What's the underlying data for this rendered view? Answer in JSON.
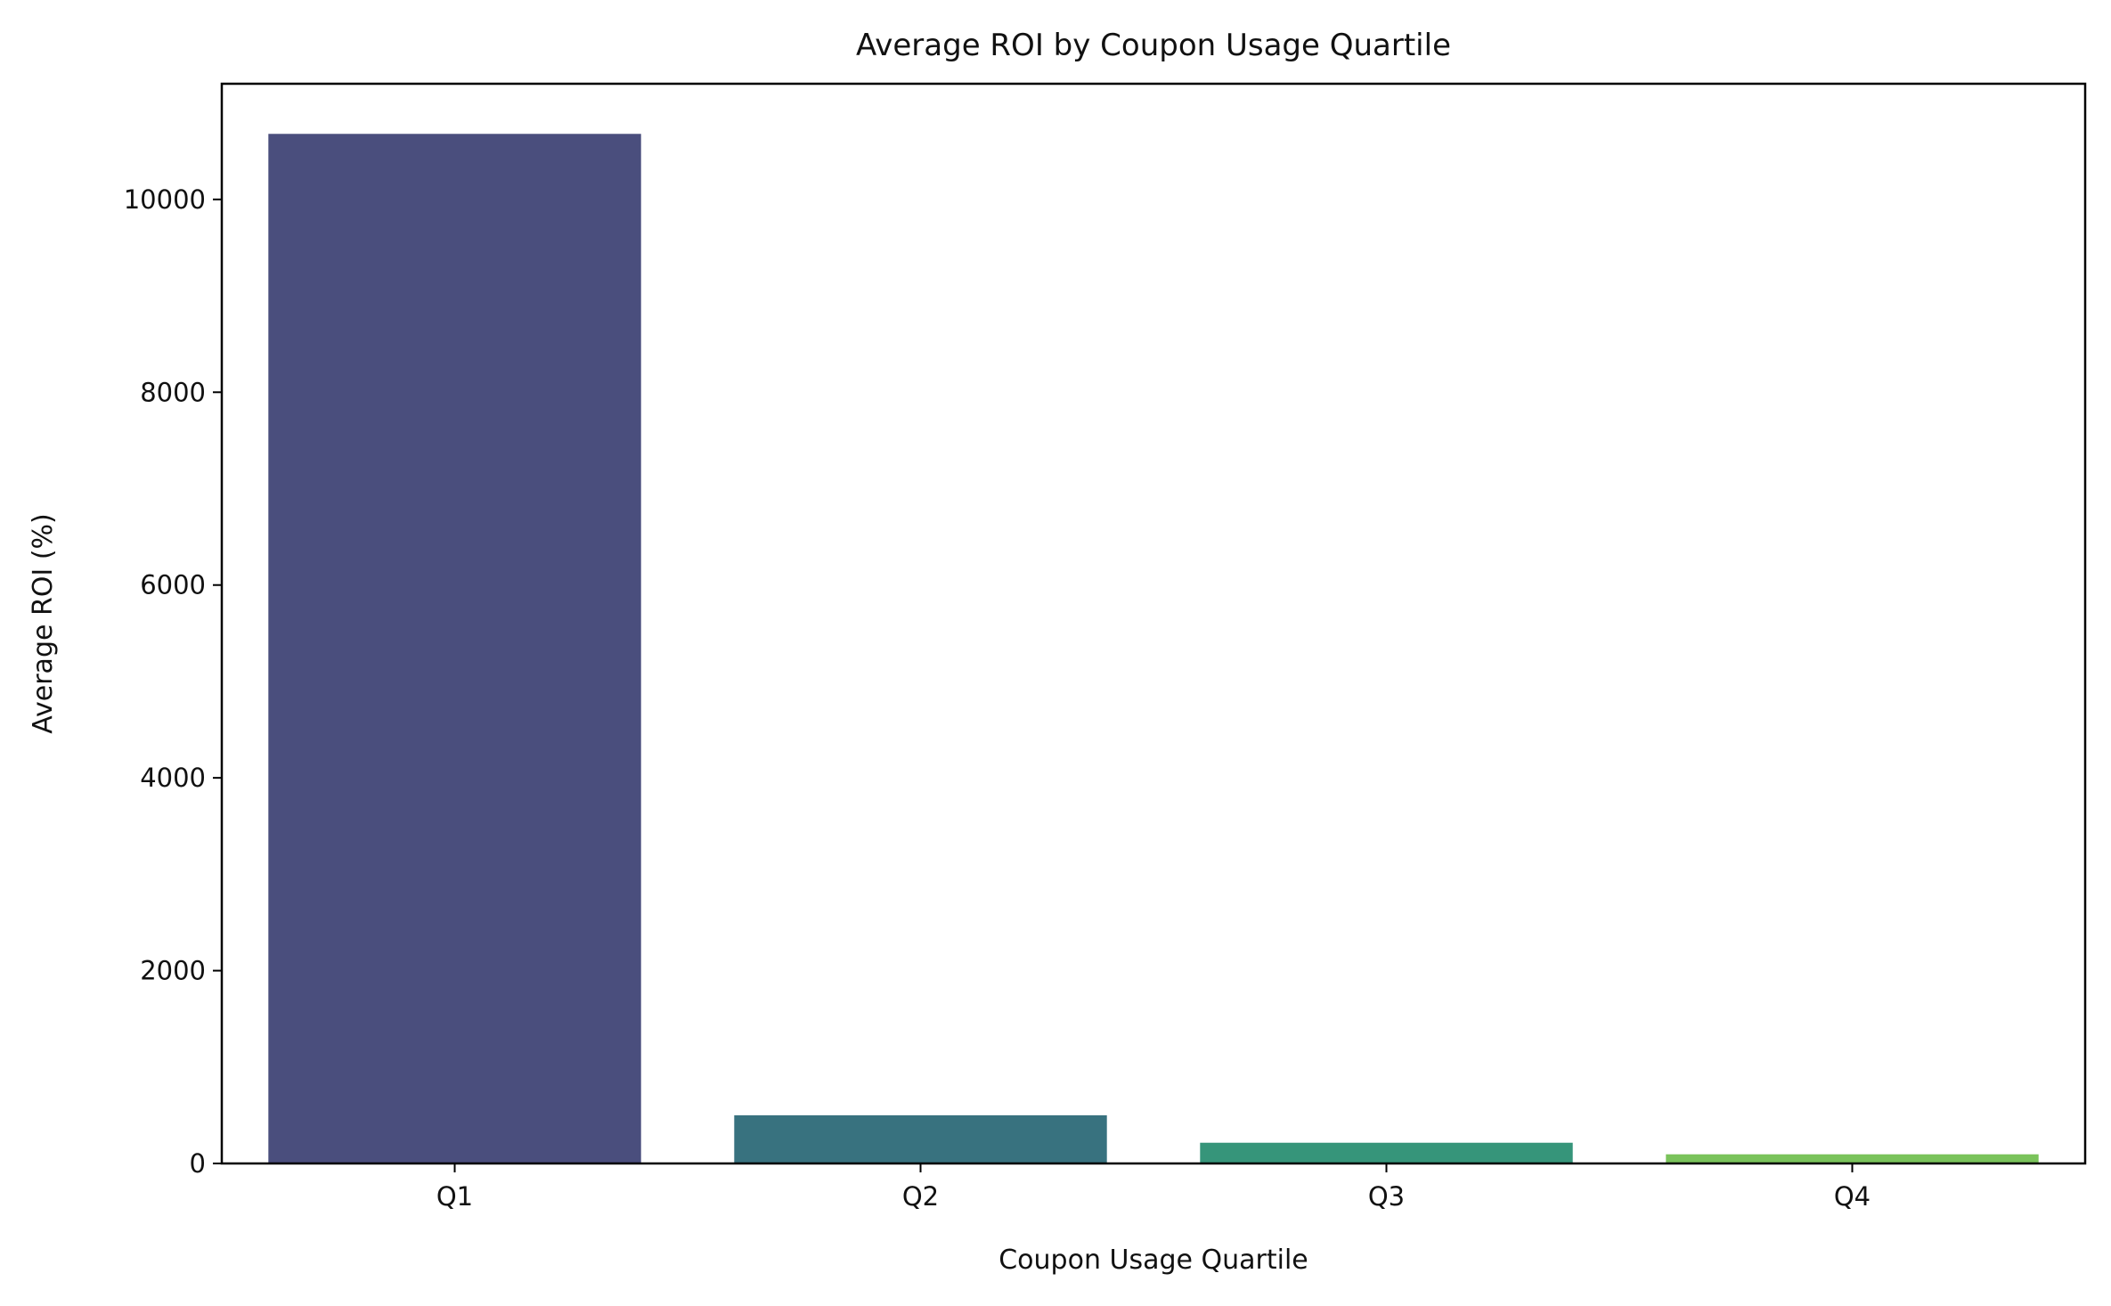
{
  "chart_data": {
    "type": "bar",
    "title": "Average ROI by Coupon Usage Quartile",
    "xlabel": "Coupon Usage Quartile",
    "ylabel": "Average ROI (%)",
    "categories": [
      "Q1",
      "Q2",
      "Q3",
      "Q4"
    ],
    "values": [
      10680,
      500,
      215,
      95
    ],
    "colors": [
      "#4a4e7d",
      "#38727f",
      "#36957a",
      "#7ac35b"
    ],
    "ylim": [
      0,
      11200
    ],
    "yticks": [
      0,
      2000,
      4000,
      6000,
      8000,
      10000
    ],
    "ytick_labels": [
      "0",
      "2000",
      "4000",
      "6000",
      "8000",
      "10000"
    ],
    "grid": false,
    "legend": "none"
  }
}
